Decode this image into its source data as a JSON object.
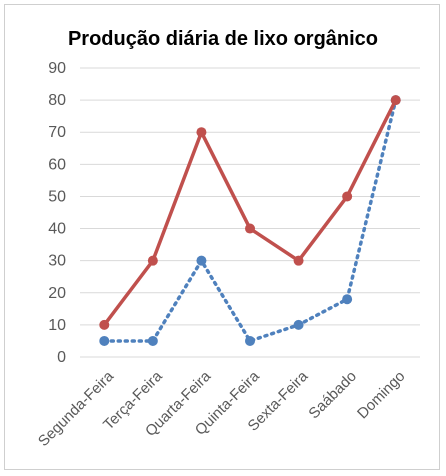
{
  "chart_data": {
    "type": "line",
    "title": "Produção diária de lixo orgânico",
    "xlabel": "",
    "ylabel": "",
    "ylim": [
      0,
      90
    ],
    "yticks": [
      0,
      10,
      20,
      30,
      40,
      50,
      60,
      70,
      80,
      90
    ],
    "grid": true,
    "legend": "none",
    "categories": [
      "Segunda-Feira",
      "Terça-Feira",
      "Quarta-Feira",
      "Quinta-Feira",
      "Sexta-Feira",
      "Saábado",
      "Domingo"
    ],
    "series": [
      {
        "values": [
          10,
          30,
          70,
          40,
          30,
          50,
          80
        ],
        "color": "#c0504d",
        "style": "solid"
      },
      {
        "values": [
          5,
          5,
          30,
          5,
          10,
          18,
          80
        ],
        "color": "#4f81bd",
        "style": "dotted"
      }
    ]
  }
}
